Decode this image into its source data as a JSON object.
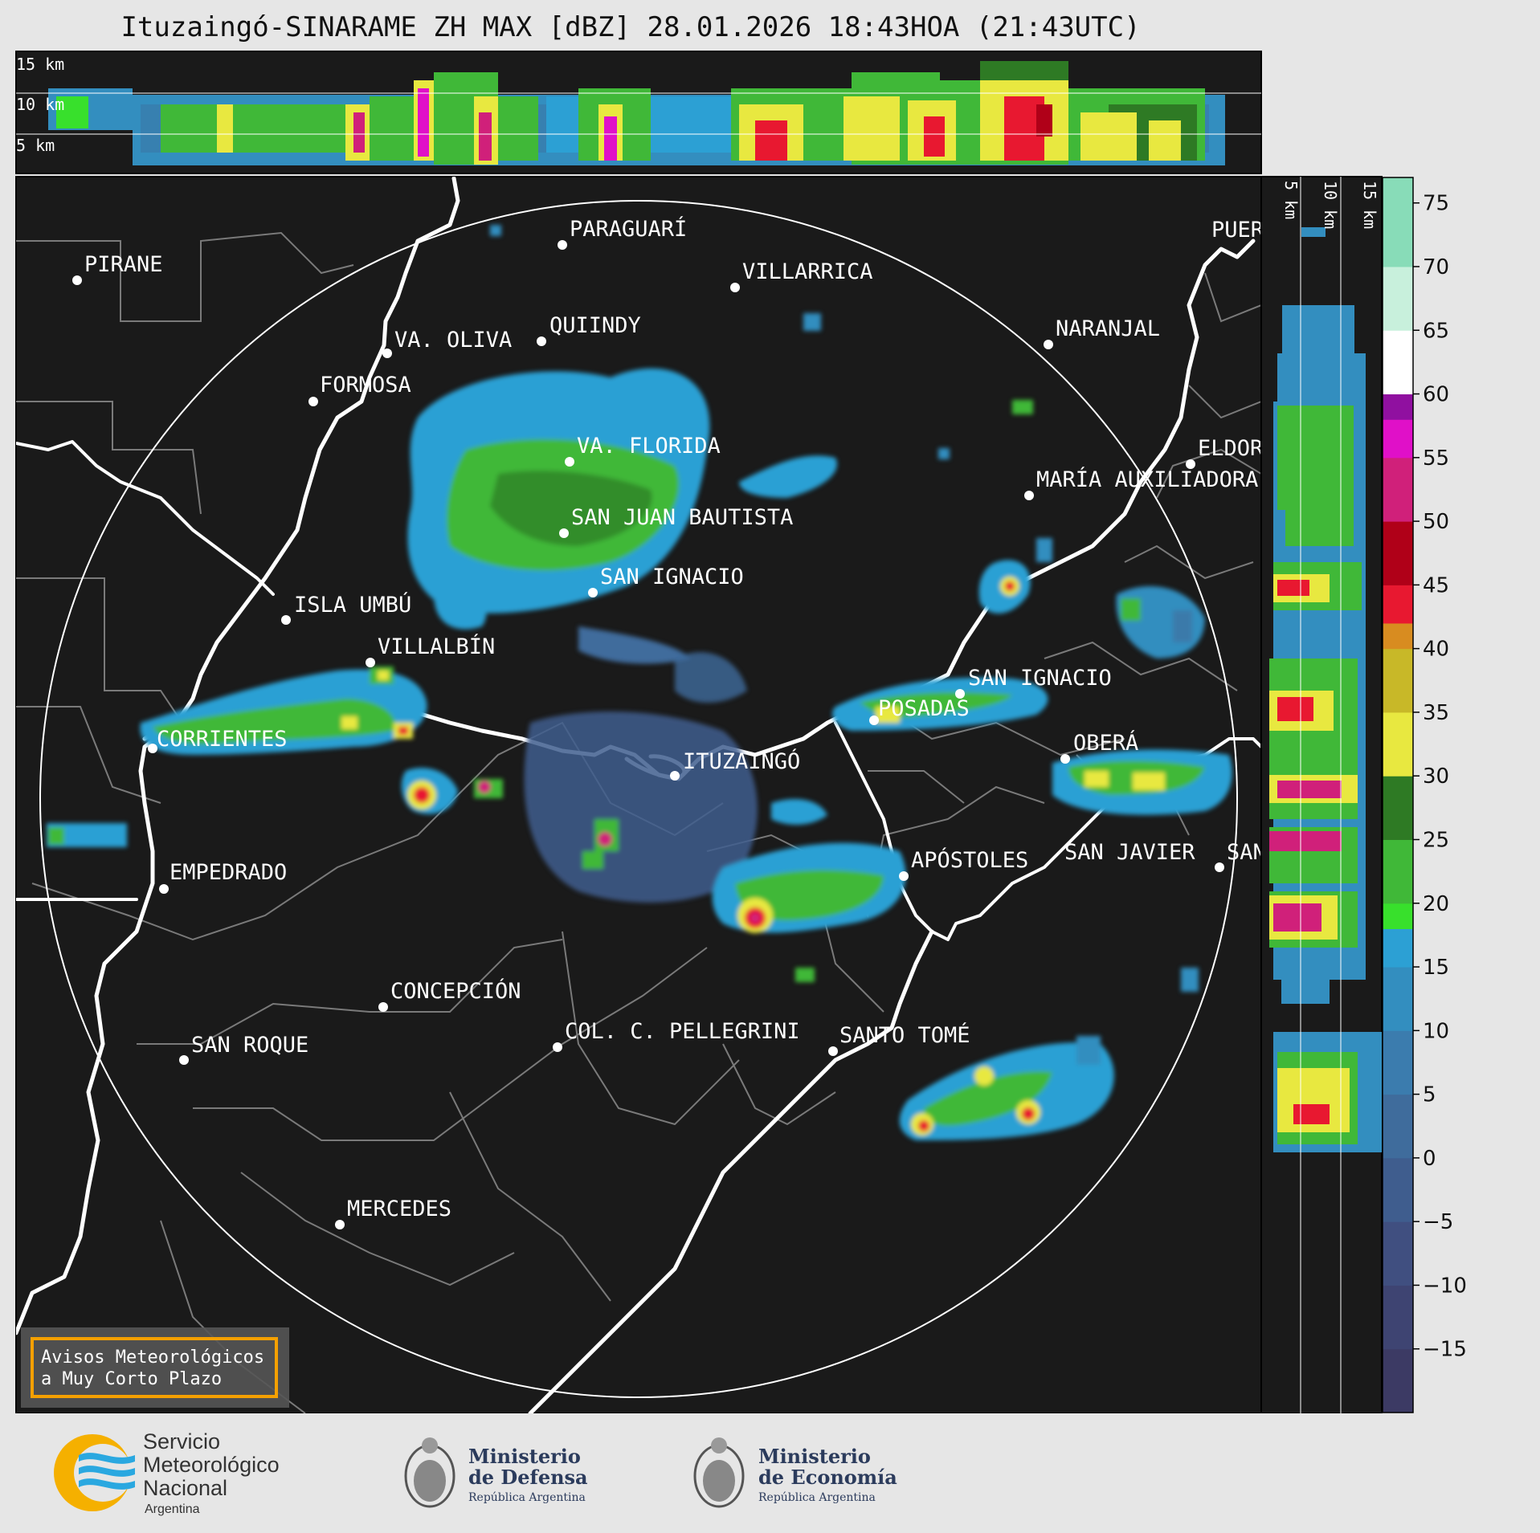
{
  "title": "Ituzaingó-SINARAME ZH MAX [dBZ] 28.01.2026 18:43HOA (21:43UTC)",
  "top_profile_labels": [
    "15 km",
    "10 km",
    "5 km"
  ],
  "side_profile_labels": [
    "5 km",
    "10 km",
    "15 km"
  ],
  "colorbar": {
    "min": -20,
    "max": 77,
    "ticks": [
      75,
      70,
      65,
      60,
      55,
      50,
      45,
      40,
      35,
      30,
      25,
      20,
      15,
      10,
      5,
      0,
      "−5",
      "−10",
      "−15"
    ],
    "bands": [
      {
        "from": -20,
        "to": -15,
        "color": "#3c3a64"
      },
      {
        "from": -15,
        "to": -10,
        "color": "#3e4472"
      },
      {
        "from": -10,
        "to": -5,
        "color": "#404f80"
      },
      {
        "from": -5,
        "to": 0,
        "color": "#3f5d8e"
      },
      {
        "from": 0,
        "to": 5,
        "color": "#3f6c9c"
      },
      {
        "from": 5,
        "to": 10,
        "color": "#3b7cae"
      },
      {
        "from": 10,
        "to": 15,
        "color": "#338ebf"
      },
      {
        "from": 15,
        "to": 18,
        "color": "#2ca0d4"
      },
      {
        "from": 18,
        "to": 20,
        "color": "#38e02c"
      },
      {
        "from": 20,
        "to": 25,
        "color": "#40b838"
      },
      {
        "from": 25,
        "to": 30,
        "color": "#2e7a24"
      },
      {
        "from": 30,
        "to": 35,
        "color": "#e8e840"
      },
      {
        "from": 35,
        "to": 40,
        "color": "#c8b828"
      },
      {
        "from": 40,
        "to": 42,
        "color": "#d88c20"
      },
      {
        "from": 42,
        "to": 45,
        "color": "#e81830"
      },
      {
        "from": 45,
        "to": 50,
        "color": "#b00018"
      },
      {
        "from": 50,
        "to": 55,
        "color": "#d0207a"
      },
      {
        "from": 55,
        "to": 58,
        "color": "#e010c8"
      },
      {
        "from": 58,
        "to": 60,
        "color": "#9010a0"
      },
      {
        "from": 60,
        "to": 65,
        "color": "#ffffff"
      },
      {
        "from": 65,
        "to": 70,
        "color": "#c8f0dc"
      },
      {
        "from": 70,
        "to": 77,
        "color": "#88dcb8"
      }
    ]
  },
  "places": [
    {
      "name": "PARAGUARÍ"
    },
    {
      "name": "VILLARRICA"
    },
    {
      "name": "PIRANE"
    },
    {
      "name": "QUIINDY"
    },
    {
      "name": "VA. OLIVA"
    },
    {
      "name": "NARANJAL"
    },
    {
      "name": "FORMOSA"
    },
    {
      "name": "VA. FLORIDA"
    },
    {
      "name": "ELDORADO"
    },
    {
      "name": "MARÍA AUXILIADORA"
    },
    {
      "name": "SAN JUAN BAUTISTA"
    },
    {
      "name": "SAN IGNACIO"
    },
    {
      "name": "ISLA UMBÚ"
    },
    {
      "name": "VILLALBÍN"
    },
    {
      "name": "SAN IGNACIO"
    },
    {
      "name": "POSADAS"
    },
    {
      "name": "CORRIENTES"
    },
    {
      "name": "OBERÁ"
    },
    {
      "name": "ITUZAINGÓ"
    },
    {
      "name": "APÓSTOLES"
    },
    {
      "name": "SAN JAVIER"
    },
    {
      "name": "SAN"
    },
    {
      "name": "EMPEDRADO"
    },
    {
      "name": "CONCEPCIÓN"
    },
    {
      "name": "COL. C. PELLEGRINI"
    },
    {
      "name": "SANTO TOMÉ"
    },
    {
      "name": "SAN ROQUE"
    },
    {
      "name": "MERCEDES"
    },
    {
      "name": "PUERTO"
    }
  ],
  "warning_box": {
    "line1": "Avisos Meteorológicos",
    "line2": "a Muy Corto Plazo"
  },
  "logos": {
    "smn": {
      "l1": "Servicio",
      "l2": "Meteorológico",
      "l3": "Nacional",
      "l4": "Argentina"
    },
    "defensa": {
      "l1": "Ministerio",
      "l2": "de Defensa",
      "l3": "República Argentina"
    },
    "economia": {
      "l1": "Ministerio",
      "l2": "de Economía",
      "l3": "República Argentina"
    }
  },
  "colors": {
    "map_bg": "#1a1a1a",
    "frame_bg": "#e6e6e6",
    "border_gray": "#7a7a7a",
    "warning_border": "#f5a000"
  }
}
